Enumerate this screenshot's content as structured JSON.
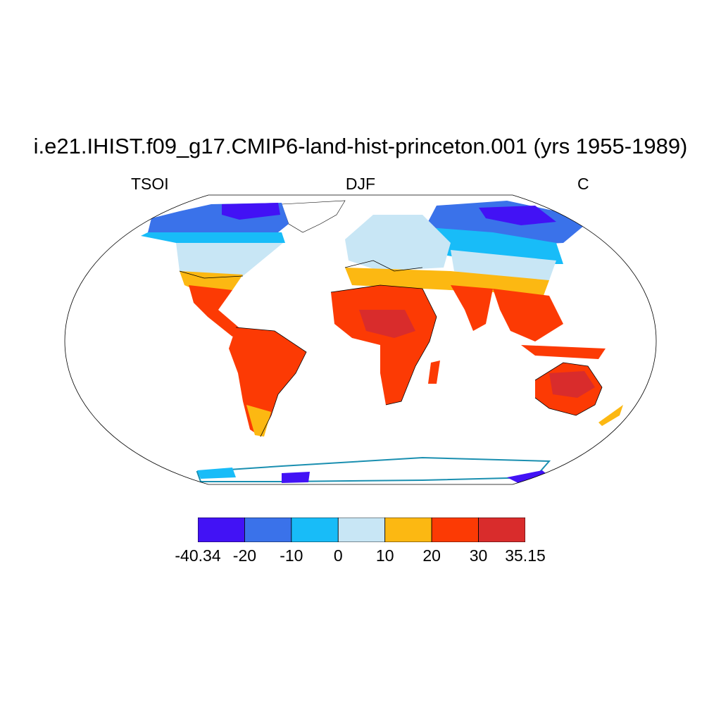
{
  "title": "i.e21.IHIST.f09_g17.CMIP6-land-hist-princeton.001 (yrs 1955-1989)",
  "variable": "TSOI",
  "season": "DJF",
  "units": "C",
  "projection": "Robinson",
  "colorbar": {
    "colors": [
      "#4212f5",
      "#3a72ea",
      "#18bcf8",
      "#c8e6f5",
      "#fcb812",
      "#fc3a04",
      "#d92c2c"
    ],
    "labels": [
      "-40.34",
      "-20",
      "-10",
      "0",
      "10",
      "20",
      "30",
      "35.15"
    ]
  }
}
